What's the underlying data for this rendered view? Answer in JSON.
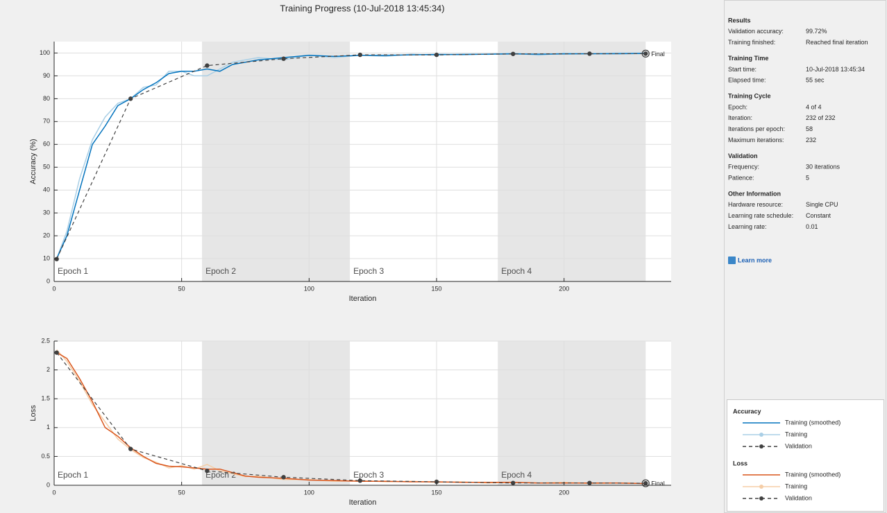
{
  "window": {
    "title": "Training Progress (10-Jul-2018 13:45:34)"
  },
  "chart_data": [
    {
      "type": "line",
      "ylabel": "Accuracy (%)",
      "xlabel": "Iteration",
      "legend_title": "Accuracy",
      "xlim": [
        0,
        242
      ],
      "ylim": [
        0,
        105
      ],
      "xticks": [
        0,
        50,
        100,
        150,
        200
      ],
      "yticks": [
        0,
        10,
        20,
        30,
        40,
        50,
        60,
        70,
        80,
        90,
        100
      ],
      "grid": true,
      "epoch_bands": [
        {
          "label": "Epoch 1",
          "start": 0,
          "end": 58,
          "shaded": false
        },
        {
          "label": "Epoch 2",
          "start": 58,
          "end": 116,
          "shaded": true
        },
        {
          "label": "Epoch 3",
          "start": 116,
          "end": 174,
          "shaded": false
        },
        {
          "label": "Epoch 4",
          "start": 174,
          "end": 232,
          "shaded": true
        }
      ],
      "final": {
        "x": 232,
        "label": "Final"
      },
      "series": [
        {
          "name": "Training",
          "color": "#a9cfe6",
          "style": "solid",
          "marker": false,
          "x": [
            1,
            5,
            10,
            15,
            20,
            25,
            30,
            35,
            40,
            45,
            50,
            55,
            60,
            65,
            70,
            75,
            80,
            90,
            100,
            110,
            120,
            130,
            140,
            150,
            160,
            170,
            180,
            190,
            200,
            210,
            220,
            232
          ],
          "values": [
            10,
            22,
            45,
            62,
            72,
            78,
            80,
            85,
            86,
            92,
            92,
            90,
            90,
            93,
            96,
            97,
            98,
            97,
            99,
            98,
            99,
            98.5,
            99.5,
            99,
            99.6,
            99.4,
            100,
            99,
            100,
            99.6,
            100,
            100
          ]
        },
        {
          "name": "Training (smoothed)",
          "color": "#0072bd",
          "style": "solid",
          "marker": false,
          "x": [
            1,
            5,
            10,
            15,
            20,
            25,
            30,
            35,
            40,
            45,
            50,
            55,
            60,
            65,
            70,
            75,
            80,
            90,
            100,
            110,
            120,
            130,
            140,
            150,
            160,
            170,
            180,
            190,
            200,
            210,
            220,
            232
          ],
          "values": [
            10,
            20,
            40,
            60,
            68,
            77,
            80,
            84,
            87,
            91,
            92,
            92,
            93,
            92,
            95,
            96,
            97,
            98,
            99,
            98.5,
            99,
            99,
            99.2,
            99.4,
            99.3,
            99.5,
            99.6,
            99.5,
            99.6,
            99.7,
            99.7,
            99.8
          ]
        },
        {
          "name": "Validation",
          "color": "#404040",
          "style": "dashed",
          "marker": true,
          "x": [
            1,
            30,
            60,
            90,
            120,
            150,
            180,
            210,
            232
          ],
          "values": [
            9.8,
            80,
            94.5,
            97.5,
            99.2,
            99.2,
            99.6,
            99.7,
            99.72
          ]
        }
      ]
    },
    {
      "type": "line",
      "ylabel": "Loss",
      "xlabel": "Iteration",
      "legend_title": "Loss",
      "xlim": [
        0,
        242
      ],
      "ylim": [
        0,
        2.5
      ],
      "xticks": [
        0,
        50,
        100,
        150,
        200
      ],
      "yticks": [
        0,
        0.5,
        1,
        1.5,
        2,
        2.5
      ],
      "grid": true,
      "epoch_bands": [
        {
          "label": "Epoch 1",
          "start": 0,
          "end": 58,
          "shaded": false
        },
        {
          "label": "Epoch 2",
          "start": 58,
          "end": 116,
          "shaded": true
        },
        {
          "label": "Epoch 3",
          "start": 116,
          "end": 174,
          "shaded": false
        },
        {
          "label": "Epoch 4",
          "start": 174,
          "end": 232,
          "shaded": true
        }
      ],
      "final": {
        "x": 232,
        "label": "Final"
      },
      "series": [
        {
          "name": "Training",
          "color": "#f5cda6",
          "style": "solid",
          "marker": false,
          "x": [
            1,
            5,
            10,
            15,
            20,
            25,
            30,
            35,
            40,
            45,
            50,
            55,
            60,
            65,
            70,
            75,
            80,
            90,
            100,
            110,
            120,
            130,
            140,
            150,
            160,
            170,
            180,
            190,
            200,
            210,
            220,
            232
          ],
          "values": [
            2.35,
            2.15,
            1.8,
            1.4,
            1.1,
            0.8,
            0.62,
            0.48,
            0.4,
            0.3,
            0.34,
            0.28,
            0.36,
            0.25,
            0.2,
            0.15,
            0.16,
            0.1,
            0.1,
            0.07,
            0.08,
            0.06,
            0.07,
            0.05,
            0.06,
            0.04,
            0.05,
            0.04,
            0.05,
            0.03,
            0.04,
            0.03
          ]
        },
        {
          "name": "Training (smoothed)",
          "color": "#d95319",
          "style": "solid",
          "marker": false,
          "x": [
            1,
            5,
            10,
            15,
            20,
            25,
            30,
            35,
            40,
            45,
            50,
            55,
            60,
            65,
            70,
            75,
            80,
            90,
            100,
            110,
            120,
            130,
            140,
            150,
            160,
            170,
            180,
            190,
            200,
            210,
            220,
            232
          ],
          "values": [
            2.3,
            2.2,
            1.85,
            1.45,
            1.0,
            0.85,
            0.65,
            0.5,
            0.38,
            0.33,
            0.32,
            0.3,
            0.28,
            0.28,
            0.22,
            0.16,
            0.14,
            0.12,
            0.09,
            0.08,
            0.07,
            0.07,
            0.06,
            0.06,
            0.05,
            0.05,
            0.05,
            0.04,
            0.04,
            0.04,
            0.04,
            0.03
          ]
        },
        {
          "name": "Validation",
          "color": "#404040",
          "style": "dashed",
          "marker": true,
          "x": [
            1,
            30,
            60,
            90,
            120,
            150,
            180,
            210,
            232
          ],
          "values": [
            2.3,
            0.63,
            0.25,
            0.14,
            0.08,
            0.06,
            0.04,
            0.04,
            0.035
          ]
        }
      ]
    }
  ],
  "sidebar": {
    "sections": [
      {
        "title": "Results",
        "rows": [
          [
            "Validation accuracy:",
            "99.72%"
          ],
          [
            "Training finished:",
            "Reached final iteration"
          ]
        ]
      },
      {
        "title": "Training Time",
        "rows": [
          [
            "Start time:",
            "10-Jul-2018 13:45:34"
          ],
          [
            "Elapsed time:",
            "55 sec"
          ]
        ]
      },
      {
        "title": "Training Cycle",
        "rows": [
          [
            "Epoch:",
            "4 of 4"
          ],
          [
            "Iteration:",
            "232 of 232"
          ],
          [
            "Iterations per epoch:",
            "58"
          ],
          [
            "Maximum iterations:",
            "232"
          ]
        ]
      },
      {
        "title": "Validation",
        "rows": [
          [
            "Frequency:",
            "30 iterations"
          ],
          [
            "Patience:",
            "5"
          ]
        ]
      },
      {
        "title": "Other Information",
        "rows": [
          [
            "Hardware resource:",
            "Single CPU"
          ],
          [
            "Learning rate schedule:",
            "Constant"
          ],
          [
            "Learning rate:",
            "0.01"
          ]
        ]
      }
    ],
    "link": "Learn more"
  }
}
